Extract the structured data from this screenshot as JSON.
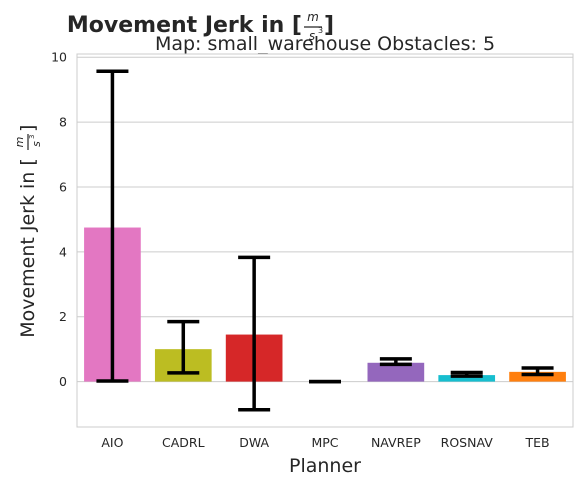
{
  "chart_data": {
    "type": "bar",
    "title": "Movement Jerk in [m/s³]",
    "title_prefix": "Movement Jerk in [",
    "title_suffix": "]",
    "unit_numerator": "m",
    "unit_denominator": "s",
    "unit_exponent": "3",
    "subtitle": "Map: small_warehouse Obstacles: 5",
    "xlabel": "Planner",
    "ylabel": "Movement Jerk in [m/s³]",
    "ylabel_prefix": "Movement Jerk in [",
    "ylabel_suffix": "]",
    "ylim": [
      -1.4,
      10.1
    ],
    "yticks": [
      0,
      2,
      4,
      6,
      8,
      10
    ],
    "grid": true,
    "categories": [
      "AIO",
      "CADRL",
      "DWA",
      "MPC",
      "NAVREP",
      "ROSNAV",
      "TEB"
    ],
    "values": [
      4.75,
      1.0,
      1.45,
      0.0,
      0.58,
      0.2,
      0.3
    ],
    "error_low": [
      0.02,
      0.27,
      -0.87,
      0.0,
      0.53,
      0.17,
      0.22
    ],
    "error_high": [
      9.57,
      1.85,
      3.83,
      0.0,
      0.7,
      0.28,
      0.42
    ],
    "colors": [
      "#e377c2",
      "#bcbd22",
      "#d62728",
      "#7f7f7f",
      "#9467bd",
      "#17becf",
      "#ff7f0e"
    ]
  }
}
